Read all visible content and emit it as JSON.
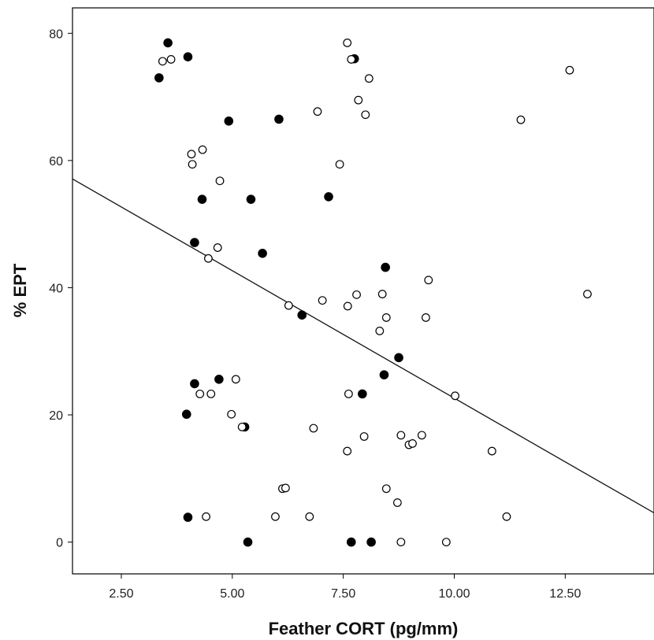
{
  "chart_data": {
    "type": "scatter",
    "title": "",
    "xlabel": "Feather CORT (pg/mm)",
    "ylabel": "% EPT",
    "xlim": [
      1.4,
      14.5
    ],
    "ylim": [
      -5,
      84
    ],
    "x_ticks": [
      2.5,
      5.0,
      7.5,
      10.0,
      12.5
    ],
    "x_tick_labels": [
      "2.50",
      "5.00",
      "7.50",
      "10.00",
      "12.50"
    ],
    "y_ticks": [
      0,
      20,
      40,
      60,
      80
    ],
    "y_tick_labels": [
      "0",
      "20",
      "40",
      "60",
      "80"
    ],
    "grid": false,
    "legend": "none",
    "series": [
      {
        "marker": "filled-circle",
        "color": "#000000",
        "points": [
          [
            3.55,
            78.5
          ],
          [
            4.0,
            76.3
          ],
          [
            3.35,
            73.0
          ],
          [
            7.75,
            76.0
          ],
          [
            4.92,
            66.2
          ],
          [
            6.05,
            66.5
          ],
          [
            4.32,
            53.9
          ],
          [
            5.42,
            53.9
          ],
          [
            7.17,
            54.3
          ],
          [
            4.15,
            47.1
          ],
          [
            5.68,
            45.4
          ],
          [
            8.45,
            43.2
          ],
          [
            6.57,
            35.7
          ],
          [
            8.75,
            29.0
          ],
          [
            8.42,
            26.3
          ],
          [
            4.15,
            24.9
          ],
          [
            4.7,
            25.6
          ],
          [
            7.93,
            23.3
          ],
          [
            3.97,
            20.1
          ],
          [
            5.28,
            18.1
          ],
          [
            4.0,
            3.9
          ],
          [
            5.35,
            0.0
          ],
          [
            7.68,
            0.0
          ],
          [
            8.13,
            0.0
          ]
        ]
      },
      {
        "marker": "open-circle",
        "color": "#000000",
        "points": [
          [
            3.43,
            75.6
          ],
          [
            3.62,
            75.9
          ],
          [
            7.59,
            78.5
          ],
          [
            7.68,
            75.9
          ],
          [
            8.08,
            72.9
          ],
          [
            7.84,
            69.5
          ],
          [
            6.92,
            67.7
          ],
          [
            8.0,
            67.2
          ],
          [
            12.6,
            74.2
          ],
          [
            11.5,
            66.4
          ],
          [
            4.08,
            61.0
          ],
          [
            4.33,
            61.7
          ],
          [
            4.1,
            59.4
          ],
          [
            7.42,
            59.4
          ],
          [
            4.72,
            56.8
          ],
          [
            4.67,
            46.3
          ],
          [
            4.46,
            44.6
          ],
          [
            9.42,
            41.2
          ],
          [
            13.0,
            39.0
          ],
          [
            7.03,
            38.0
          ],
          [
            7.8,
            38.9
          ],
          [
            8.38,
            39.0
          ],
          [
            6.27,
            37.2
          ],
          [
            7.6,
            37.1
          ],
          [
            8.47,
            35.3
          ],
          [
            9.36,
            35.3
          ],
          [
            8.32,
            33.2
          ],
          [
            5.08,
            25.6
          ],
          [
            4.27,
            23.3
          ],
          [
            4.52,
            23.3
          ],
          [
            7.62,
            23.3
          ],
          [
            10.02,
            23.0
          ],
          [
            4.98,
            20.1
          ],
          [
            5.22,
            18.1
          ],
          [
            6.83,
            17.9
          ],
          [
            7.97,
            16.6
          ],
          [
            8.8,
            16.8
          ],
          [
            9.27,
            16.8
          ],
          [
            8.98,
            15.3
          ],
          [
            9.06,
            15.5
          ],
          [
            10.85,
            14.3
          ],
          [
            7.59,
            14.3
          ],
          [
            6.13,
            8.4
          ],
          [
            6.2,
            8.5
          ],
          [
            8.47,
            8.4
          ],
          [
            8.72,
            6.2
          ],
          [
            4.41,
            4.0
          ],
          [
            5.97,
            4.0
          ],
          [
            6.74,
            4.0
          ],
          [
            11.18,
            4.0
          ],
          [
            8.8,
            0.0
          ],
          [
            9.82,
            0.0
          ]
        ]
      }
    ],
    "fit_line": {
      "type": "linear",
      "x": [
        1.4,
        14.5
      ],
      "y": [
        57.1,
        4.6
      ]
    }
  }
}
